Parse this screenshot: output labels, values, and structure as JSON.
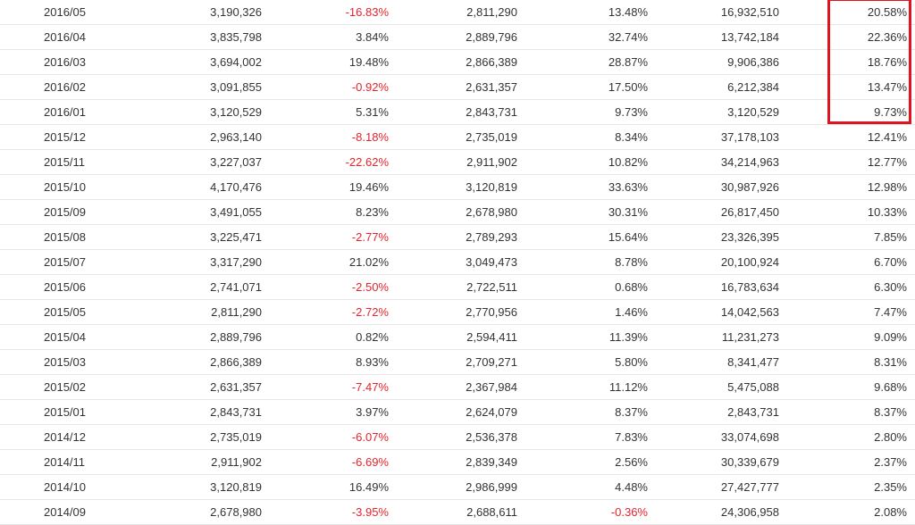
{
  "colors": {
    "negative": "#e8232b",
    "highlight": "#e0141e",
    "row_border": "#e6e6e6",
    "text": "#333333"
  },
  "rows": [
    [
      "2016/05",
      "3,190,326",
      "-16.83%",
      "2,811,290",
      "13.48%",
      "16,932,510",
      "20.58%"
    ],
    [
      "2016/04",
      "3,835,798",
      "3.84%",
      "2,889,796",
      "32.74%",
      "13,742,184",
      "22.36%"
    ],
    [
      "2016/03",
      "3,694,002",
      "19.48%",
      "2,866,389",
      "28.87%",
      "9,906,386",
      "18.76%"
    ],
    [
      "2016/02",
      "3,091,855",
      "-0.92%",
      "2,631,357",
      "17.50%",
      "6,212,384",
      "13.47%"
    ],
    [
      "2016/01",
      "3,120,529",
      "5.31%",
      "2,843,731",
      "9.73%",
      "3,120,529",
      "9.73%"
    ],
    [
      "2015/12",
      "2,963,140",
      "-8.18%",
      "2,735,019",
      "8.34%",
      "37,178,103",
      "12.41%"
    ],
    [
      "2015/11",
      "3,227,037",
      "-22.62%",
      "2,911,902",
      "10.82%",
      "34,214,963",
      "12.77%"
    ],
    [
      "2015/10",
      "4,170,476",
      "19.46%",
      "3,120,819",
      "33.63%",
      "30,987,926",
      "12.98%"
    ],
    [
      "2015/09",
      "3,491,055",
      "8.23%",
      "2,678,980",
      "30.31%",
      "26,817,450",
      "10.33%"
    ],
    [
      "2015/08",
      "3,225,471",
      "-2.77%",
      "2,789,293",
      "15.64%",
      "23,326,395",
      "7.85%"
    ],
    [
      "2015/07",
      "3,317,290",
      "21.02%",
      "3,049,473",
      "8.78%",
      "20,100,924",
      "6.70%"
    ],
    [
      "2015/06",
      "2,741,071",
      "-2.50%",
      "2,722,511",
      "0.68%",
      "16,783,634",
      "6.30%"
    ],
    [
      "2015/05",
      "2,811,290",
      "-2.72%",
      "2,770,956",
      "1.46%",
      "14,042,563",
      "7.47%"
    ],
    [
      "2015/04",
      "2,889,796",
      "0.82%",
      "2,594,411",
      "11.39%",
      "11,231,273",
      "9.09%"
    ],
    [
      "2015/03",
      "2,866,389",
      "8.93%",
      "2,709,271",
      "5.80%",
      "8,341,477",
      "8.31%"
    ],
    [
      "2015/02",
      "2,631,357",
      "-7.47%",
      "2,367,984",
      "11.12%",
      "5,475,088",
      "9.68%"
    ],
    [
      "2015/01",
      "2,843,731",
      "3.97%",
      "2,624,079",
      "8.37%",
      "2,843,731",
      "8.37%"
    ],
    [
      "2014/12",
      "2,735,019",
      "-6.07%",
      "2,536,378",
      "7.83%",
      "33,074,698",
      "2.80%"
    ],
    [
      "2014/11",
      "2,911,902",
      "-6.69%",
      "2,839,349",
      "2.56%",
      "30,339,679",
      "2.37%"
    ],
    [
      "2014/10",
      "3,120,819",
      "16.49%",
      "2,986,999",
      "4.48%",
      "27,427,777",
      "2.35%"
    ],
    [
      "2014/09",
      "2,678,980",
      "-3.95%",
      "2,688,611",
      "-0.36%",
      "24,306,958",
      "2.08%"
    ]
  ]
}
